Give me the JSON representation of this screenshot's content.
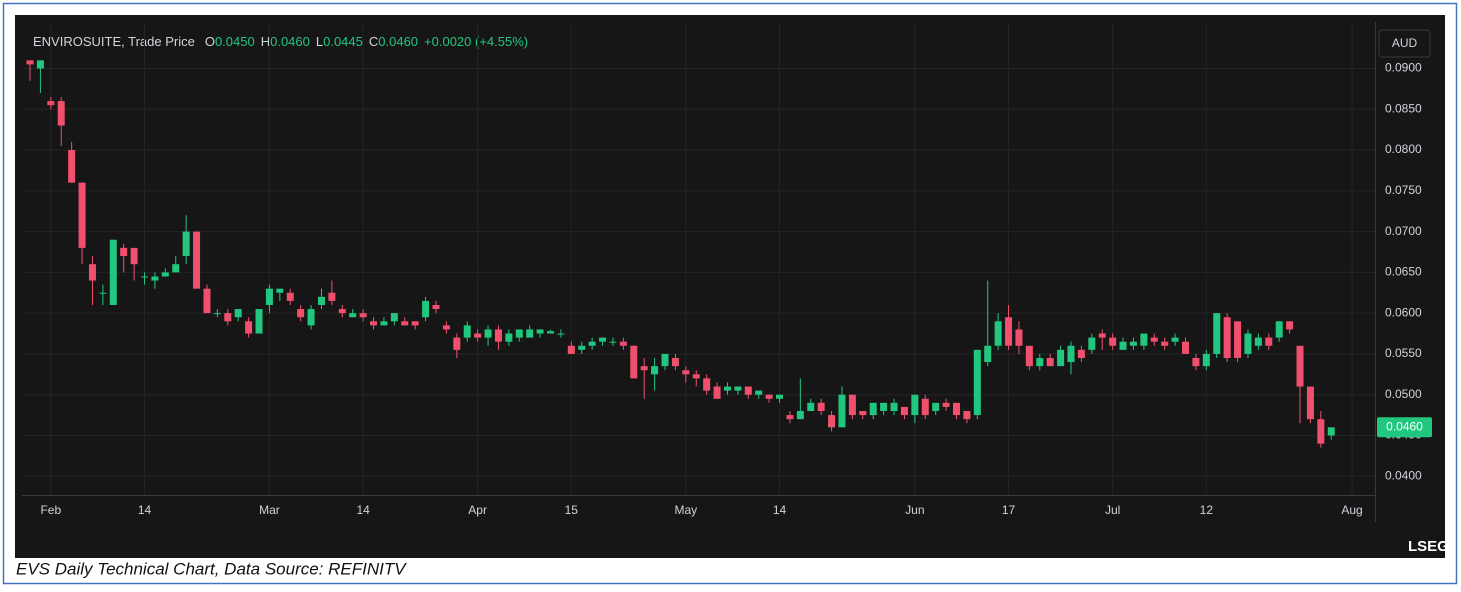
{
  "chart_data": {
    "type": "candlestick",
    "title": "ENVIROSUITE, Trade Price",
    "ohlc_header": [
      {
        "key": "O",
        "value": "0.0450"
      },
      {
        "key": "H",
        "value": "0.0460"
      },
      {
        "key": "L",
        "value": "0.0445"
      },
      {
        "key": "C",
        "value": "0.0460"
      }
    ],
    "change": "+0.0020 (+4.55%)",
    "currency": "AUD",
    "caption": "EVS Daily Technical Chart, Data Source: REFINITV",
    "logo": "LSEG",
    "up_color": "#22c77f",
    "down_color": "#f0506e",
    "grid": true,
    "ylim": [
      0.0377,
      0.0957
    ],
    "yticks": [
      {
        "value": 0.04,
        "label": "0.0400"
      },
      {
        "value": 0.045,
        "label": "0.0450"
      },
      {
        "value": 0.05,
        "label": "0.0500"
      },
      {
        "value": 0.055,
        "label": "0.0550"
      },
      {
        "value": 0.06,
        "label": "0.0600"
      },
      {
        "value": 0.065,
        "label": "0.0650"
      },
      {
        "value": 0.07,
        "label": "0.0700"
      },
      {
        "value": 0.075,
        "label": "0.0750"
      },
      {
        "value": 0.08,
        "label": "0.0800"
      },
      {
        "value": 0.085,
        "label": "0.0850"
      },
      {
        "value": 0.09,
        "label": "0.0900"
      }
    ],
    "last_label": {
      "value": 0.046,
      "label": "0.0460"
    },
    "categories": [
      null,
      null,
      "Feb",
      null,
      null,
      null,
      null,
      null,
      null,
      null,
      null,
      "14",
      null,
      null,
      null,
      null,
      null,
      null,
      null,
      null,
      null,
      null,
      null,
      "Mar",
      null,
      null,
      null,
      null,
      null,
      null,
      null,
      null,
      "14",
      null,
      null,
      null,
      null,
      null,
      null,
      null,
      null,
      null,
      null,
      "Apr",
      null,
      null,
      null,
      null,
      null,
      null,
      null,
      null,
      "15",
      null,
      null,
      null,
      null,
      null,
      null,
      null,
      null,
      null,
      null,
      "May",
      null,
      null,
      null,
      null,
      null,
      null,
      null,
      null,
      "14",
      null,
      null,
      null,
      null,
      null,
      null,
      null,
      null,
      null,
      null,
      null,
      null,
      "Jun",
      null,
      null,
      null,
      null,
      null,
      null,
      null,
      null,
      "17",
      null,
      null,
      null,
      null,
      null,
      null,
      null,
      null,
      null,
      "Jul",
      null,
      null,
      null,
      null,
      null,
      null,
      null,
      null,
      "12",
      null,
      null,
      null,
      null,
      null,
      null,
      null,
      null,
      null,
      null,
      null,
      null,
      null,
      "Aug"
    ],
    "open": [
      0.091,
      0.09,
      0.086,
      0.086,
      0.08,
      0.076,
      0.066,
      0.0625,
      0.061,
      0.068,
      0.068,
      0.0645,
      0.064,
      0.0645,
      0.065,
      0.067,
      0.07,
      0.063,
      0.06,
      0.06,
      0.0595,
      0.059,
      0.0575,
      0.061,
      0.0625,
      0.0625,
      0.0605,
      0.0585,
      0.061,
      0.0625,
      0.0605,
      0.0595,
      0.06,
      0.059,
      0.0585,
      0.059,
      0.059,
      0.059,
      0.0595,
      0.061,
      0.0585,
      0.057,
      0.057,
      0.0575,
      0.057,
      0.058,
      0.0565,
      0.057,
      0.057,
      0.0575,
      0.0575,
      0.0575,
      0.056,
      0.0555,
      0.056,
      0.0565,
      0.0565,
      0.0565,
      0.056,
      0.0535,
      0.0525,
      0.0535,
      0.0545,
      0.053,
      0.0525,
      0.052,
      0.051,
      0.0505,
      0.0505,
      0.051,
      0.05,
      0.05,
      0.0495,
      0.0475,
      0.047,
      0.048,
      0.049,
      0.0475,
      0.046,
      0.05,
      0.048,
      0.0475,
      0.048,
      0.048,
      0.0485,
      0.0475,
      0.0495,
      0.048,
      0.049,
      0.049,
      0.048,
      0.0475,
      0.054,
      0.056,
      0.0595,
      0.058,
      0.056,
      0.0535,
      0.0545,
      0.0535,
      0.054,
      0.0555,
      0.0555,
      0.0575,
      0.057,
      0.0555,
      0.056,
      0.056,
      0.057,
      0.0565,
      0.0565,
      0.0565,
      0.0545,
      0.0535,
      0.055,
      0.0595,
      0.059,
      0.055,
      0.056,
      0.057,
      0.057,
      0.059,
      0.056,
      0.051,
      0.047,
      0.045,
      null,
      null
    ],
    "high": [
      0.091,
      0.091,
      0.0865,
      0.0865,
      0.081,
      0.076,
      0.067,
      0.0635,
      0.069,
      0.0685,
      0.068,
      0.065,
      0.065,
      0.0655,
      0.067,
      0.072,
      0.07,
      0.0635,
      0.0605,
      0.0605,
      0.0605,
      0.0595,
      0.0605,
      0.0635,
      0.063,
      0.063,
      0.061,
      0.061,
      0.063,
      0.064,
      0.061,
      0.0605,
      0.0605,
      0.0595,
      0.0595,
      0.06,
      0.0595,
      0.059,
      0.062,
      0.0615,
      0.059,
      0.0575,
      0.059,
      0.058,
      0.0585,
      0.0585,
      0.058,
      0.058,
      0.0585,
      0.058,
      0.058,
      0.058,
      0.0565,
      0.0565,
      0.057,
      0.057,
      0.057,
      0.057,
      0.056,
      0.0545,
      0.0545,
      0.055,
      0.055,
      0.0535,
      0.053,
      0.0525,
      0.0515,
      0.0515,
      0.051,
      0.051,
      0.0505,
      0.05,
      0.05,
      0.048,
      0.052,
      0.0495,
      0.0495,
      0.048,
      0.051,
      0.05,
      0.048,
      0.049,
      0.049,
      0.0495,
      0.0485,
      0.05,
      0.05,
      0.049,
      0.0495,
      0.049,
      0.048,
      0.0555,
      0.064,
      0.06,
      0.061,
      0.059,
      0.056,
      0.055,
      0.055,
      0.056,
      0.0565,
      0.056,
      0.0575,
      0.058,
      0.0575,
      0.057,
      0.057,
      0.0575,
      0.0575,
      0.057,
      0.0575,
      0.057,
      0.055,
      0.0555,
      0.06,
      0.06,
      0.059,
      0.058,
      0.0575,
      0.0575,
      0.059,
      0.059,
      0.056,
      0.051,
      0.048,
      0.046,
      null,
      null
    ],
    "low": [
      0.0885,
      0.087,
      0.085,
      0.0805,
      0.076,
      0.066,
      0.061,
      0.061,
      0.061,
      0.065,
      0.064,
      0.0635,
      0.063,
      0.0645,
      0.065,
      0.066,
      0.063,
      0.06,
      0.0595,
      0.0585,
      0.059,
      0.057,
      0.0575,
      0.06,
      0.0615,
      0.061,
      0.059,
      0.058,
      0.0605,
      0.061,
      0.0595,
      0.0595,
      0.059,
      0.058,
      0.0585,
      0.0585,
      0.0585,
      0.058,
      0.059,
      0.06,
      0.0575,
      0.0545,
      0.0565,
      0.0565,
      0.056,
      0.0555,
      0.056,
      0.0565,
      0.057,
      0.057,
      0.0575,
      0.057,
      0.055,
      0.055,
      0.0555,
      0.056,
      0.056,
      0.0555,
      0.052,
      0.0495,
      0.0505,
      0.053,
      0.053,
      0.0515,
      0.051,
      0.05,
      0.0495,
      0.05,
      0.05,
      0.0495,
      0.0495,
      0.049,
      0.049,
      0.0465,
      0.047,
      0.048,
      0.0475,
      0.0455,
      0.046,
      0.047,
      0.047,
      0.047,
      0.0475,
      0.0475,
      0.047,
      0.0465,
      0.047,
      0.0475,
      0.048,
      0.047,
      0.0465,
      0.047,
      0.0535,
      0.0555,
      0.0555,
      0.055,
      0.053,
      0.053,
      0.0535,
      0.0535,
      0.0525,
      0.054,
      0.055,
      0.0555,
      0.0555,
      0.0555,
      0.0555,
      0.0555,
      0.056,
      0.0555,
      0.056,
      0.055,
      0.053,
      0.053,
      0.0545,
      0.054,
      0.054,
      0.0545,
      0.0555,
      0.0555,
      0.0565,
      0.0575,
      0.0465,
      0.0465,
      0.0435,
      0.0445,
      null,
      null
    ],
    "close": [
      0.0905,
      0.091,
      0.0855,
      0.083,
      0.076,
      0.068,
      0.064,
      0.0625,
      0.069,
      0.067,
      0.066,
      0.0645,
      0.0645,
      0.065,
      0.066,
      0.07,
      0.063,
      0.06,
      0.06,
      0.059,
      0.0605,
      0.0575,
      0.0605,
      0.063,
      0.063,
      0.0615,
      0.0595,
      0.0605,
      0.062,
      0.0615,
      0.06,
      0.06,
      0.0595,
      0.0585,
      0.059,
      0.06,
      0.0585,
      0.0585,
      0.0615,
      0.0605,
      0.058,
      0.0555,
      0.0585,
      0.057,
      0.058,
      0.0565,
      0.0575,
      0.058,
      0.058,
      0.058,
      0.0578,
      0.0575,
      0.055,
      0.056,
      0.0565,
      0.057,
      0.0565,
      0.056,
      0.052,
      0.053,
      0.0535,
      0.055,
      0.0535,
      0.0525,
      0.052,
      0.0505,
      0.0495,
      0.051,
      0.051,
      0.05,
      0.0505,
      0.0495,
      0.05,
      0.047,
      0.048,
      0.049,
      0.048,
      0.046,
      0.05,
      0.0475,
      0.0475,
      0.049,
      0.049,
      0.049,
      0.0475,
      0.05,
      0.0475,
      0.049,
      0.0485,
      0.0475,
      0.047,
      0.0555,
      0.056,
      0.059,
      0.056,
      0.056,
      0.0535,
      0.0545,
      0.0535,
      0.0555,
      0.056,
      0.0545,
      0.057,
      0.057,
      0.056,
      0.0565,
      0.0565,
      0.0575,
      0.0565,
      0.056,
      0.057,
      0.055,
      0.0535,
      0.055,
      0.06,
      0.0545,
      0.0545,
      0.0575,
      0.057,
      0.056,
      0.059,
      0.058,
      0.051,
      0.047,
      0.044,
      0.046,
      null,
      null
    ]
  }
}
